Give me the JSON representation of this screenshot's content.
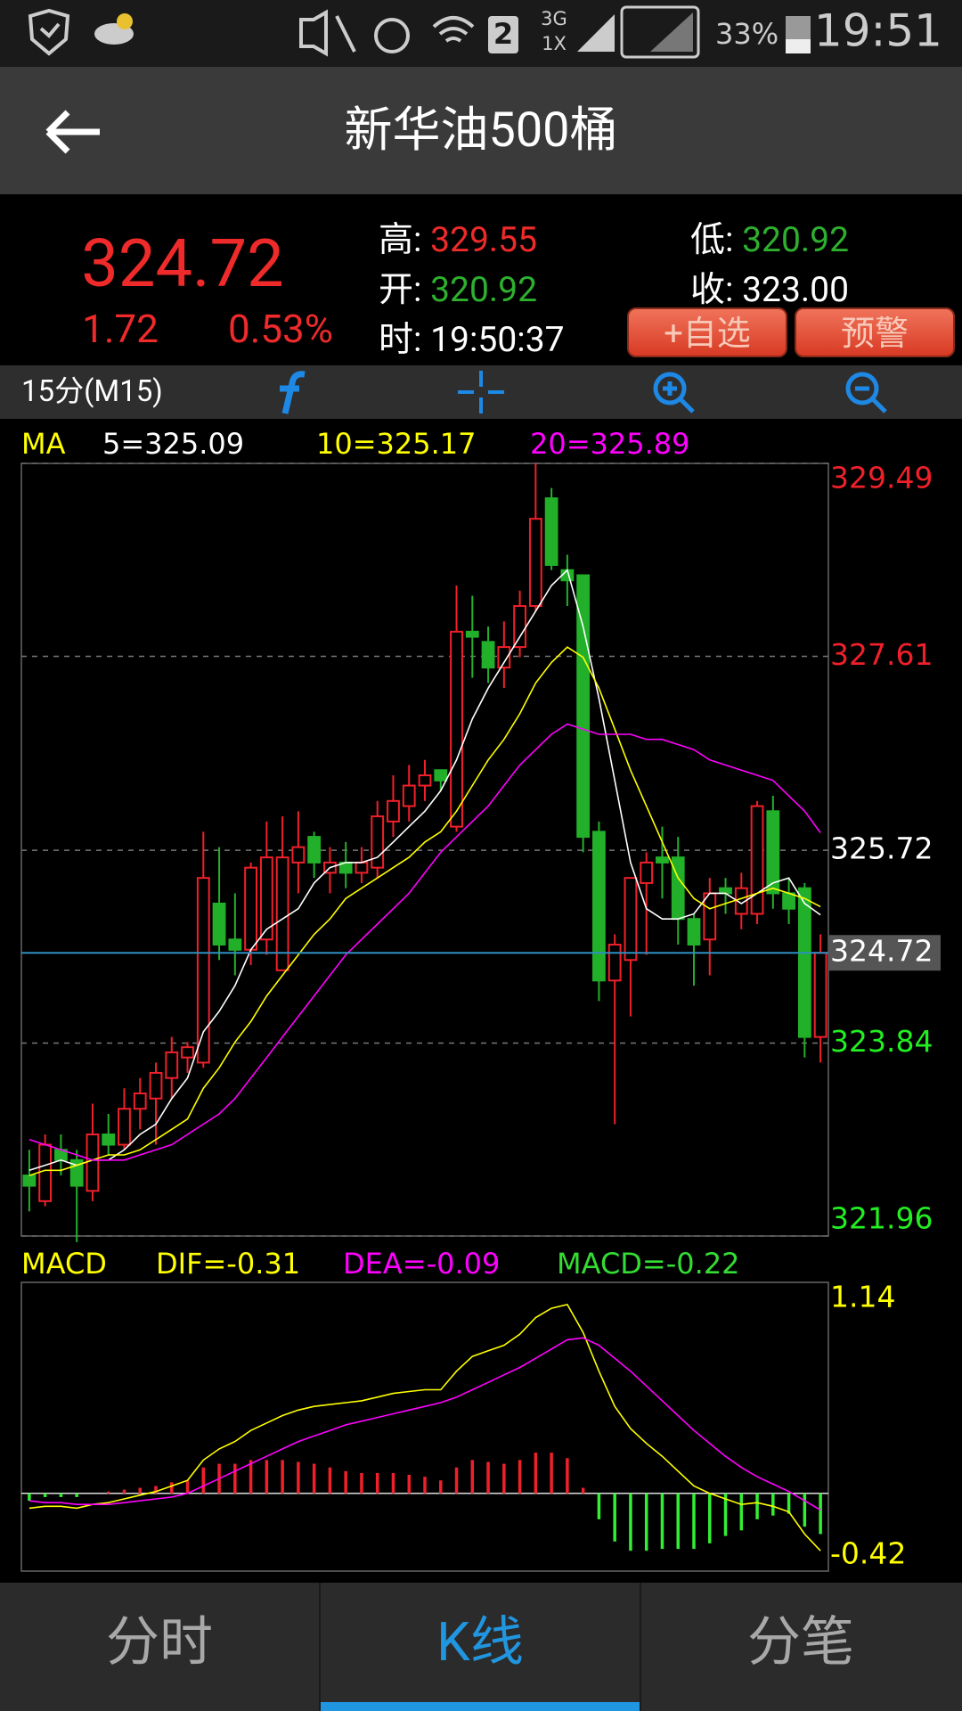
{
  "status_bar": {
    "network": "3G",
    "network2": "1X",
    "sim": "2",
    "battery": "33%",
    "time": "19:51"
  },
  "header": {
    "title": "新华油500桶"
  },
  "quote": {
    "price": "324.72",
    "change": "1.72",
    "change_pct": "0.53%",
    "high": {
      "label": "高:",
      "value": "329.55"
    },
    "open": {
      "label": "开:",
      "value": "320.92"
    },
    "time": {
      "label": "时:",
      "value": "19:50:37"
    },
    "low": {
      "label": "低:",
      "value": "320.92"
    },
    "close": {
      "label": "收:",
      "value": "323.00"
    },
    "buttons": [
      "+自选",
      "预警"
    ]
  },
  "toolbar": {
    "period": "15分(M15)"
  },
  "chart_data": [
    {
      "type": "candlestick",
      "legend_title": "MA",
      "legend_title_color": "#ffff00",
      "open": [
        322.55,
        322.3,
        322.8,
        322.7,
        322.4,
        322.95,
        322.85,
        323.2,
        323.3,
        323.5,
        323.7,
        323.65,
        325.2,
        324.85,
        324.75,
        324.85,
        324.55,
        325.6,
        325.85,
        325.5,
        325.6,
        325.5,
        325.55,
        326.0,
        326.15,
        326.35,
        326.5,
        325.95,
        327.85,
        327.75,
        327.5,
        327.7,
        328.1,
        329.15,
        328.45,
        328.4,
        325.9,
        324.45,
        324.65,
        325.4,
        325.65,
        325.65,
        325.05,
        324.85,
        325.35,
        325.1,
        325.1,
        326.1,
        325.3,
        325.35,
        323.9
      ],
      "high": [
        322.8,
        322.95,
        322.95,
        322.8,
        323.25,
        323.15,
        323.4,
        323.5,
        323.65,
        323.9,
        323.85,
        325.9,
        325.75,
        325.3,
        325.6,
        326.0,
        326.05,
        326.1,
        325.9,
        325.75,
        325.8,
        325.75,
        326.2,
        326.45,
        326.55,
        326.6,
        326.5,
        328.3,
        328.2,
        327.9,
        327.95,
        328.25,
        329.49,
        329.25,
        328.6,
        328.4,
        326.0,
        324.9,
        325.45,
        325.7,
        325.95,
        325.85,
        325.1,
        325.45,
        325.45,
        325.5,
        326.2,
        326.25,
        325.45,
        325.4,
        324.9
      ],
      "low": [
        322.2,
        322.25,
        322.55,
        321.9,
        322.3,
        322.75,
        322.8,
        323.0,
        322.85,
        323.3,
        323.55,
        323.6,
        324.65,
        324.5,
        324.6,
        324.7,
        324.55,
        325.3,
        325.45,
        325.3,
        325.35,
        325.4,
        325.45,
        325.85,
        326.0,
        326.2,
        326.3,
        325.9,
        327.4,
        327.35,
        327.3,
        327.6,
        328.05,
        328.45,
        328.1,
        325.7,
        324.25,
        323.05,
        324.1,
        324.7,
        325.25,
        324.8,
        324.4,
        324.5,
        325.1,
        324.95,
        325.0,
        325.15,
        325.0,
        323.7,
        323.65
      ],
      "close": [
        322.45,
        322.85,
        322.7,
        322.45,
        322.95,
        322.85,
        323.2,
        323.35,
        323.55,
        323.75,
        323.8,
        325.45,
        324.8,
        324.75,
        325.55,
        325.65,
        325.65,
        325.75,
        325.6,
        325.6,
        325.5,
        325.6,
        326.05,
        326.2,
        326.35,
        326.45,
        326.4,
        327.85,
        327.8,
        327.5,
        327.7,
        328.1,
        328.95,
        328.5,
        328.35,
        325.85,
        324.45,
        324.8,
        325.45,
        325.6,
        325.6,
        325.05,
        324.8,
        325.3,
        325.3,
        325.35,
        326.15,
        325.3,
        325.15,
        323.9,
        324.72
      ],
      "up_color": "#f0202a",
      "down_color": "#22b02a",
      "series": [
        {
          "name": "5=325.09",
          "color": "#ffffff",
          "values": [
            322.6,
            322.65,
            322.7,
            322.65,
            322.7,
            322.7,
            322.8,
            322.95,
            323.05,
            323.3,
            323.5,
            323.95,
            324.15,
            324.4,
            324.75,
            324.95,
            325.05,
            325.15,
            325.4,
            325.55,
            325.6,
            325.6,
            325.65,
            325.8,
            325.95,
            326.1,
            326.3,
            326.6,
            327.0,
            327.3,
            327.55,
            327.8,
            328.05,
            328.3,
            328.45,
            327.9,
            327.2,
            326.4,
            325.6,
            325.15,
            325.05,
            325.05,
            325.1,
            325.3,
            325.3,
            325.2,
            325.3,
            325.4,
            325.45,
            325.2,
            325.09
          ]
        },
        {
          "name": "10=325.17",
          "color": "#ffff00",
          "values": [
            322.55,
            322.6,
            322.6,
            322.65,
            322.7,
            322.75,
            322.75,
            322.8,
            322.9,
            323.0,
            323.1,
            323.4,
            323.6,
            323.85,
            324.05,
            324.3,
            324.5,
            324.7,
            324.9,
            325.05,
            325.25,
            325.35,
            325.45,
            325.55,
            325.65,
            325.8,
            325.9,
            326.1,
            326.35,
            326.6,
            326.8,
            327.05,
            327.35,
            327.55,
            327.7,
            327.6,
            327.3,
            326.9,
            326.5,
            326.15,
            325.8,
            325.45,
            325.25,
            325.15,
            325.2,
            325.25,
            325.3,
            325.35,
            325.3,
            325.25,
            325.17
          ]
        },
        {
          "name": "20=325.89",
          "color": "#ff00ff",
          "values": [
            322.9,
            322.85,
            322.8,
            322.75,
            322.7,
            322.7,
            322.7,
            322.75,
            322.8,
            322.85,
            322.95,
            323.05,
            323.15,
            323.3,
            323.5,
            323.7,
            323.9,
            324.1,
            324.3,
            324.5,
            324.7,
            324.85,
            325.0,
            325.15,
            325.3,
            325.5,
            325.7,
            325.85,
            326.0,
            326.15,
            326.35,
            326.55,
            326.7,
            326.85,
            326.95,
            326.9,
            326.85,
            326.85,
            326.85,
            326.8,
            326.8,
            326.75,
            326.7,
            326.6,
            326.55,
            326.5,
            326.45,
            326.4,
            326.25,
            326.1,
            325.89
          ]
        }
      ],
      "ylim": [
        321.96,
        329.49
      ],
      "yticks": [
        329.49,
        327.61,
        325.72,
        323.84,
        321.96
      ],
      "ytick_colors": [
        "#f0202a",
        "#f0202a",
        "#ffffff",
        "#22ee22",
        "#22ee22"
      ],
      "grid": true,
      "last_price": 324.72,
      "last_price_color": "#2f8fbf"
    },
    {
      "type": "macd",
      "legend_title": "MACD",
      "legend_title_color": "#ffff00",
      "series": [
        {
          "name": "DIF=-0.31",
          "color": "#ffff00",
          "values": [
            -0.08,
            -0.07,
            -0.07,
            -0.08,
            -0.06,
            -0.05,
            -0.03,
            -0.01,
            0.01,
            0.04,
            0.07,
            0.18,
            0.24,
            0.28,
            0.34,
            0.38,
            0.42,
            0.45,
            0.47,
            0.48,
            0.49,
            0.5,
            0.52,
            0.54,
            0.55,
            0.56,
            0.56,
            0.66,
            0.74,
            0.77,
            0.8,
            0.86,
            0.95,
            1.0,
            1.02,
            0.87,
            0.66,
            0.47,
            0.35,
            0.27,
            0.2,
            0.12,
            0.04,
            0.0,
            -0.03,
            -0.06,
            -0.05,
            -0.07,
            -0.1,
            -0.22,
            -0.31
          ]
        },
        {
          "name": "DEA=-0.09",
          "color": "#ff00ff",
          "values": [
            -0.04,
            -0.05,
            -0.05,
            -0.06,
            -0.06,
            -0.06,
            -0.05,
            -0.04,
            -0.03,
            -0.02,
            0.0,
            0.04,
            0.08,
            0.12,
            0.16,
            0.2,
            0.24,
            0.28,
            0.31,
            0.34,
            0.37,
            0.39,
            0.41,
            0.43,
            0.45,
            0.47,
            0.49,
            0.52,
            0.56,
            0.6,
            0.64,
            0.68,
            0.73,
            0.78,
            0.83,
            0.84,
            0.8,
            0.73,
            0.66,
            0.58,
            0.5,
            0.42,
            0.34,
            0.27,
            0.2,
            0.14,
            0.09,
            0.05,
            0.01,
            -0.04,
            -0.09
          ]
        }
      ],
      "histogram": {
        "name": "MACD=-0.22",
        "legend_color": "#33dd33",
        "up_color": "#f0202a",
        "down_color": "#33ee33",
        "values": [
          -0.04,
          -0.02,
          -0.02,
          -0.02,
          0.0,
          0.01,
          0.02,
          0.03,
          0.04,
          0.06,
          0.07,
          0.14,
          0.16,
          0.16,
          0.18,
          0.18,
          0.18,
          0.17,
          0.16,
          0.14,
          0.12,
          0.11,
          0.11,
          0.11,
          0.1,
          0.09,
          0.07,
          0.14,
          0.18,
          0.17,
          0.16,
          0.18,
          0.22,
          0.22,
          0.19,
          0.03,
          -0.14,
          -0.26,
          -0.31,
          -0.31,
          -0.3,
          -0.3,
          -0.3,
          -0.27,
          -0.23,
          -0.2,
          -0.14,
          -0.12,
          -0.11,
          -0.18,
          -0.22
        ]
      },
      "ylim": [
        -0.42,
        1.14
      ],
      "yticks": [
        1.14,
        -0.42
      ],
      "tick_color": "#ffff00"
    }
  ],
  "tabs": [
    "分时",
    "K线",
    "分笔"
  ],
  "active_tab": 1
}
